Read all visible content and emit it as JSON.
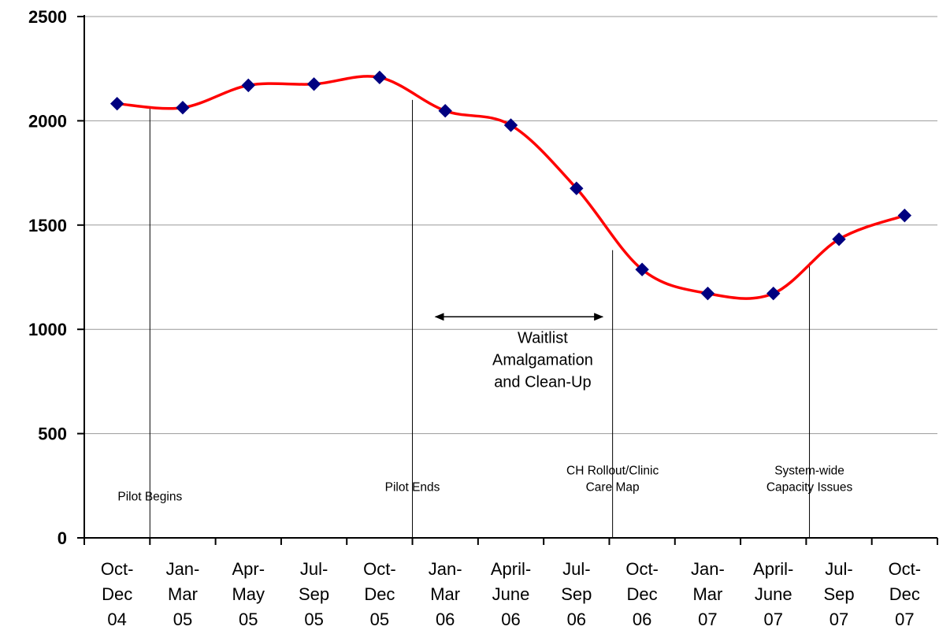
{
  "chart_data": {
    "type": "line",
    "categories": [
      [
        "Oct-",
        "Dec",
        "04"
      ],
      [
        "Jan-",
        "Mar",
        "05"
      ],
      [
        "Apr-",
        "May",
        "05"
      ],
      [
        "Jul-",
        "Sep",
        "05"
      ],
      [
        "Oct-",
        "Dec",
        "05"
      ],
      [
        "Jan-",
        "Mar",
        "06"
      ],
      [
        "April-",
        "June",
        "06"
      ],
      [
        "Jul-",
        "Sep",
        "06"
      ],
      [
        "Oct-",
        "Dec",
        "06"
      ],
      [
        "Jan-",
        "Mar",
        "07"
      ],
      [
        "April-",
        "June",
        "07"
      ],
      [
        "Jul-",
        "Sep",
        "07"
      ],
      [
        "Oct-",
        "Dec",
        "07"
      ]
    ],
    "series": [
      {
        "values": [
          2082,
          2063,
          2170,
          2176,
          2208,
          2048,
          1979,
          1676,
          1287,
          1172,
          1172,
          1432,
          1546
        ],
        "color": "#ff0000",
        "marker": "diamond",
        "marker_color": "#000080",
        "smooth": true
      }
    ],
    "ylim": [
      0,
      2500
    ],
    "yticks": [
      0,
      500,
      1000,
      1500,
      2000,
      2500
    ],
    "grid": "horizontal",
    "annotations": [
      {
        "text": [
          "Pilot Begins"
        ],
        "x": 0.5,
        "line_y": [
          2060,
          0
        ],
        "text_y": 180
      },
      {
        "text": [
          "Pilot Ends"
        ],
        "x": 4.5,
        "line_y": [
          2100,
          0
        ],
        "text_y": 225
      },
      {
        "text": [
          "CH Rollout/Clinic",
          "Care Map"
        ],
        "x": 7.55,
        "line_y": [
          1380,
          0
        ],
        "text_y": 225
      },
      {
        "text": [
          "System-wide",
          "Capacity Issues"
        ],
        "x": 10.55,
        "line_y": [
          1320,
          0
        ],
        "text_y": 225
      }
    ],
    "range_annotation": {
      "text": [
        "Waitlist",
        "Amalgamation",
        "and Clean-Up"
      ],
      "x_from": 4.85,
      "x_to": 7.4,
      "y": 1060
    }
  }
}
